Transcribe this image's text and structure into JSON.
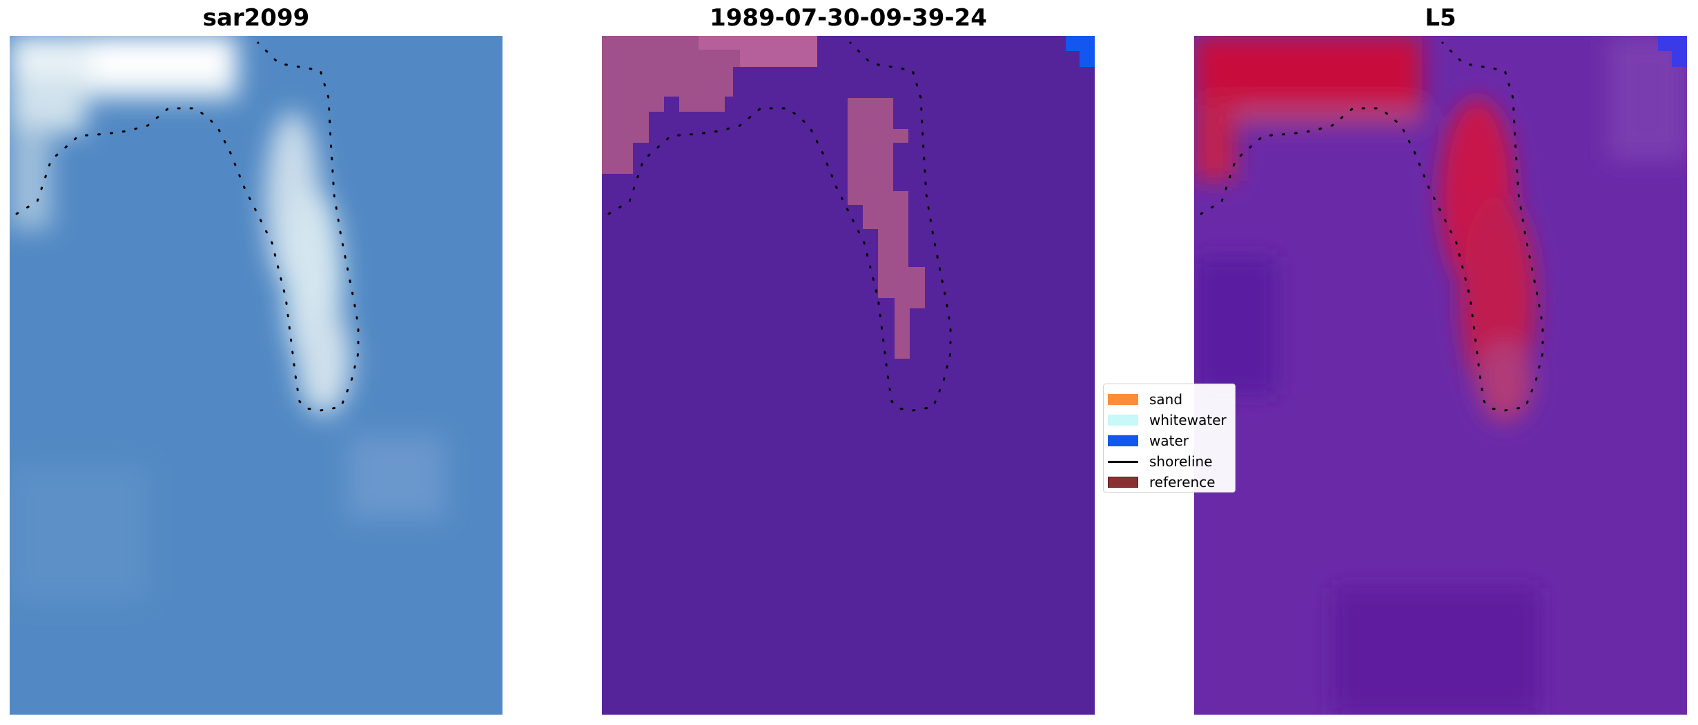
{
  "panels": [
    {
      "title": "sar2099",
      "image": "SAR satellite image"
    },
    {
      "title": "1989-07-30-09-39-24",
      "image": "classified image"
    },
    {
      "title": "L5",
      "image": "probability map"
    }
  ],
  "legend": {
    "items": [
      {
        "label": "sand",
        "color": "#ff8c3a",
        "kind": "swatch"
      },
      {
        "label": "whitewater",
        "color": "#c8f8f8",
        "kind": "swatch"
      },
      {
        "label": "water",
        "color": "#1457f0",
        "kind": "swatch"
      },
      {
        "label": "shoreline",
        "color": "#000000",
        "kind": "line"
      },
      {
        "label": "reference",
        "color": "#8b3030",
        "kind": "swatch"
      }
    ]
  },
  "colors": {
    "sar_base": "#5289c4",
    "class_purple": "#55249a",
    "class_pink": "#a0508a",
    "class_blue": "#1457f0",
    "prob_red": "#c8103c",
    "prob_purple": "#6a2aa8"
  }
}
